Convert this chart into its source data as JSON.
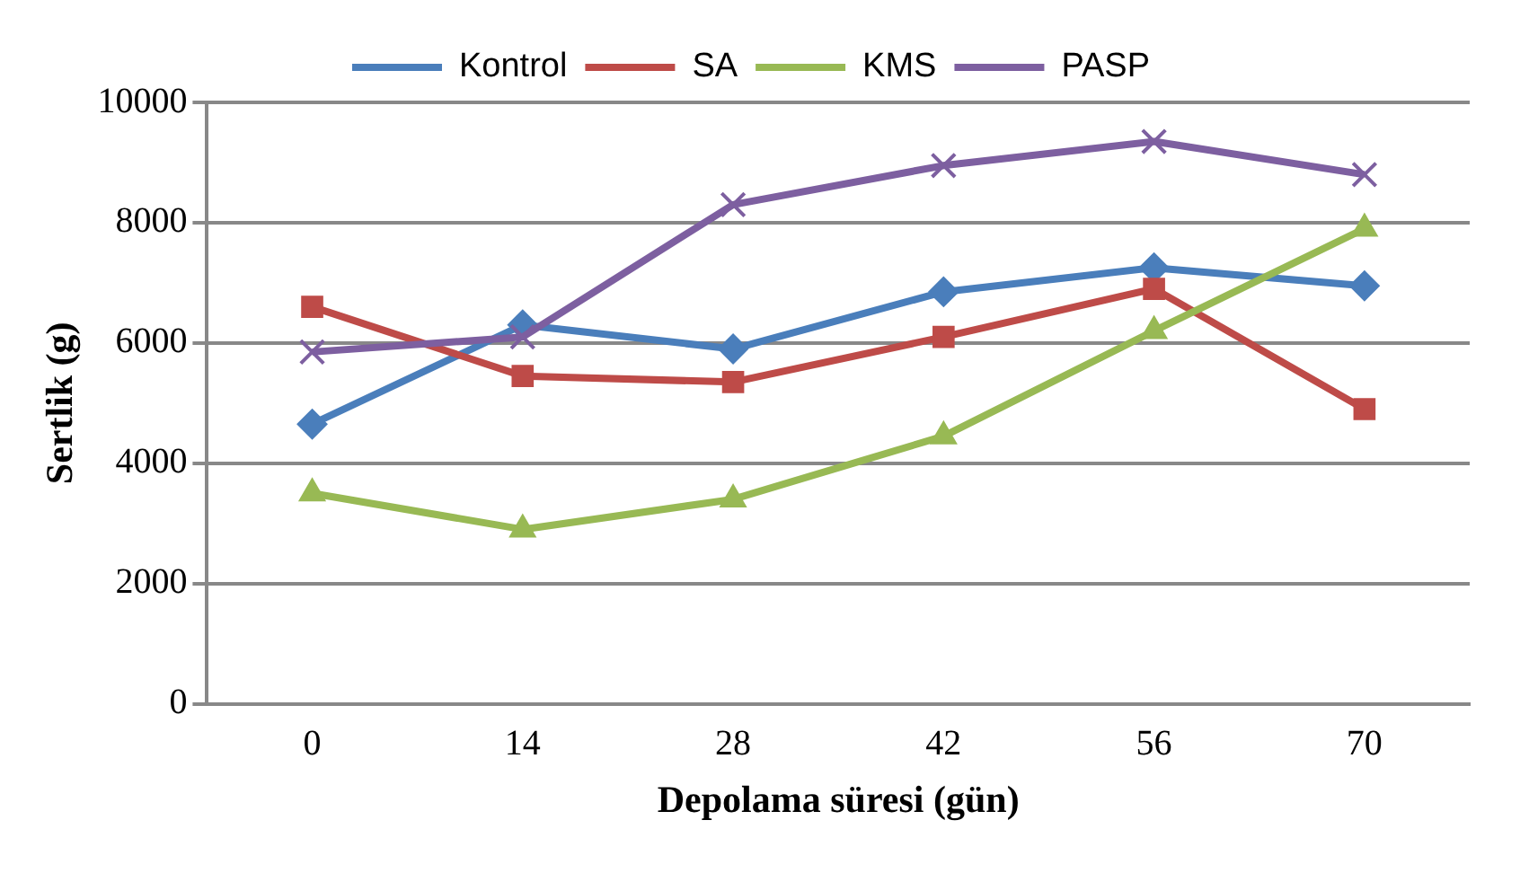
{
  "chart_data": {
    "type": "line",
    "xlabel": "Depolama süresi (gün)",
    "ylabel": "Sertlik (g)",
    "categories": [
      "0",
      "14",
      "28",
      "42",
      "56",
      "70"
    ],
    "series": [
      {
        "name": "Kontrol",
        "color": "#4a7ebb",
        "marker": "diamond",
        "values": [
          4650,
          6300,
          5900,
          6850,
          7250,
          6950
        ]
      },
      {
        "name": "SA",
        "color": "#be4b48",
        "marker": "square",
        "values": [
          6600,
          5450,
          5350,
          6100,
          6900,
          4900
        ]
      },
      {
        "name": "KMS",
        "color": "#98b954",
        "marker": "triangle",
        "values": [
          3500,
          2900,
          3400,
          4450,
          6200,
          7900
        ]
      },
      {
        "name": "PASP",
        "color": "#7d5fa0",
        "marker": "cross",
        "values": [
          5850,
          6100,
          8300,
          8950,
          9350,
          8800
        ]
      }
    ],
    "ylim": [
      0,
      10000
    ],
    "yticks": [
      0,
      2000,
      4000,
      6000,
      8000,
      10000
    ],
    "grid": "y",
    "legend": "top",
    "line_style": "solid"
  }
}
